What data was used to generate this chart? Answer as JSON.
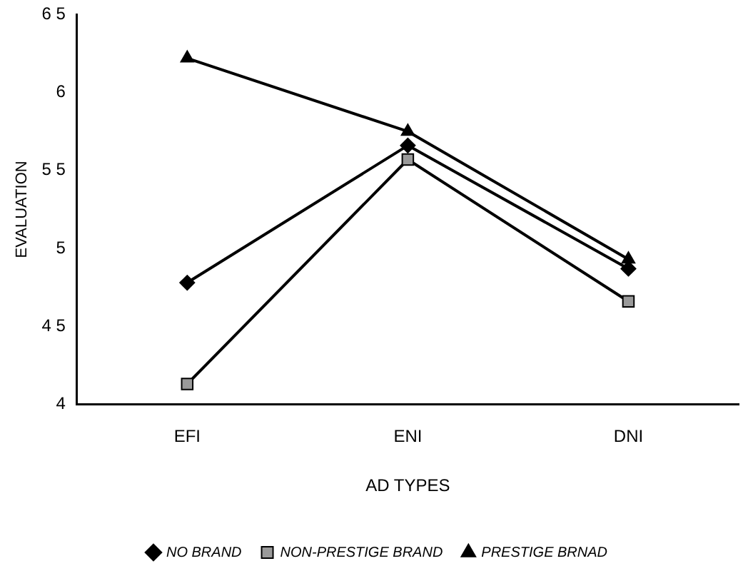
{
  "chart_data": {
    "type": "line",
    "xlabel": "AD TYPES",
    "ylabel": "EVALUATION",
    "categories": [
      "EFI",
      "ENI",
      "DNI"
    ],
    "series": [
      {
        "name": "NO BRAND",
        "color": "#000000",
        "marker": "diamond",
        "values": [
          4.78,
          5.66,
          4.87
        ]
      },
      {
        "name": "NON-PRESTIGE BRAND",
        "color": "#9a9a9a",
        "marker": "square",
        "values": [
          4.13,
          5.57,
          4.66
        ]
      },
      {
        "name": "PRESTIGE BRNAD",
        "color": "#000000",
        "marker": "triangle",
        "values": [
          6.22,
          5.75,
          4.93
        ]
      }
    ],
    "ylim": [
      4,
      6.5
    ],
    "yticks": [
      4,
      {
        "value": 4.5,
        "label": "4 5"
      },
      5,
      {
        "value": 5.5,
        "label": "5 5"
      },
      6,
      {
        "value": 6.5,
        "label": "6 5"
      }
    ],
    "grid": false,
    "legend": "bottom",
    "line_style": "solid"
  }
}
